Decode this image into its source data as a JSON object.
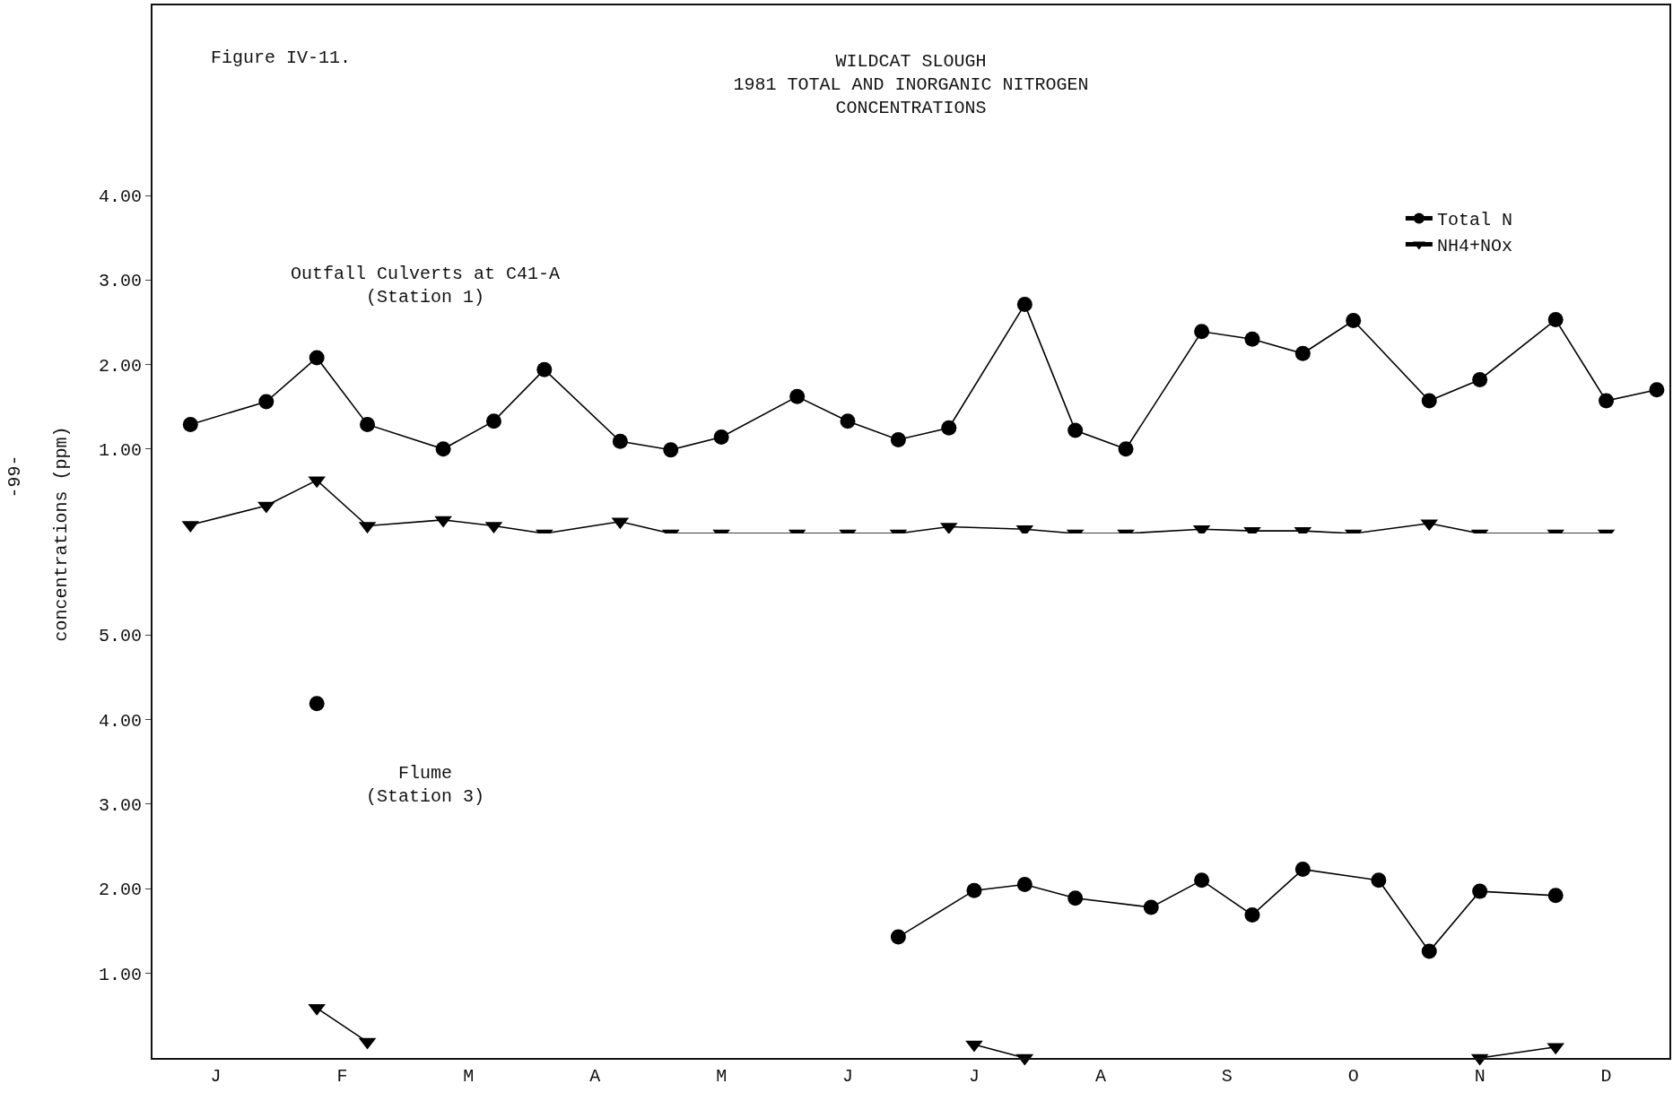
{
  "chart_data": [
    {
      "type": "line",
      "title": "WILDCAT SLOUGH\n1981 TOTAL AND INORGANIC NITROGEN\nCONCENTRATIONS",
      "ylabel": "concentrations (ppm)",
      "annotations": [
        "Figure IV-11.",
        "Outfall Culverts at C41-A\n(Station 1)",
        "-99-"
      ],
      "categories": [
        null,
        null,
        null,
        null,
        null,
        null,
        null,
        null,
        null,
        null,
        null,
        null,
        null,
        null,
        null,
        null,
        null,
        null,
        null,
        null,
        null,
        null,
        null,
        null,
        null,
        null,
        null,
        null,
        null,
        null,
        null,
        null,
        null,
        null,
        null,
        null,
        null,
        null,
        null,
        null,
        null,
        null,
        null,
        null,
        null,
        null,
        null,
        null,
        null,
        null,
        null,
        null,
        null,
        null,
        null,
        null,
        null,
        null,
        null,
        null
      ],
      "series": [
        {
          "name": "Total N",
          "color": "#000000",
          "marker": "circle",
          "values": [
            null,
            1.29,
            null,
            null,
            1.56,
            null,
            2.08,
            null,
            1.29,
            null,
            null,
            1.0,
            null,
            1.33,
            null,
            1.94,
            null,
            null,
            1.09,
            null,
            0.99,
            null,
            1.14,
            null,
            null,
            1.62,
            null,
            1.33,
            null,
            1.11,
            null,
            1.25,
            null,
            null,
            2.71,
            null,
            1.22,
            null,
            1.0,
            null,
            null,
            2.39,
            null,
            2.3,
            null,
            2.13,
            null,
            2.52,
            null,
            null,
            1.57,
            null,
            1.82,
            null,
            null,
            2.53,
            null,
            1.57,
            null,
            1.7
          ]
        },
        {
          "name": "NH4+NOx",
          "color": "#000000",
          "marker": "triangle",
          "values": [
            null,
            0.1,
            null,
            null,
            0.33,
            null,
            0.63,
            null,
            0.09,
            null,
            null,
            0.16,
            null,
            0.09,
            null,
            0,
            null,
            null,
            0.14,
            null,
            0,
            null,
            0,
            null,
            null,
            0,
            null,
            0,
            null,
            0,
            null,
            0.08,
            null,
            null,
            0.05,
            null,
            0,
            null,
            0,
            null,
            null,
            0.05,
            null,
            0.03,
            null,
            0.03,
            null,
            0,
            null,
            null,
            0.12,
            null,
            0,
            null,
            null,
            0,
            null,
            0,
            null,
            null
          ]
        }
      ],
      "ylim": [
        0,
        6.25
      ],
      "yticks": [
        {
          "value": 1,
          "label": "1.00"
        },
        {
          "value": 2,
          "label": "2.00"
        },
        {
          "value": 3,
          "label": "3.00"
        },
        {
          "value": 4,
          "label": "4.00"
        }
      ],
      "tick_labels": "y",
      "grid": false,
      "legend": "top right"
    },
    {
      "type": "line",
      "annotations": [
        "Flume\n(Station 3)"
      ],
      "categories": [
        null,
        null,
        "J",
        null,
        null,
        null,
        null,
        "F",
        null,
        null,
        null,
        null,
        "M",
        null,
        null,
        null,
        null,
        "A",
        null,
        null,
        null,
        null,
        "M",
        null,
        null,
        null,
        null,
        "J",
        null,
        null,
        null,
        null,
        "J",
        null,
        null,
        null,
        null,
        "A",
        null,
        null,
        null,
        null,
        "S",
        null,
        null,
        null,
        null,
        "O",
        null,
        null,
        null,
        null,
        "N",
        null,
        null,
        null,
        null,
        "D",
        null,
        null
      ],
      "series": [
        {
          "color": "#000000",
          "marker": "circle",
          "values": [
            null,
            null,
            null,
            null,
            null,
            null,
            4.19,
            null,
            null,
            null,
            null,
            null,
            null,
            null,
            null,
            null,
            null,
            null,
            null,
            null,
            null,
            null,
            null,
            null,
            null,
            null,
            null,
            null,
            null,
            null,
            null,
            null,
            null,
            null,
            null,
            null,
            null,
            null,
            null,
            null,
            null,
            null,
            null,
            null,
            null,
            null,
            null,
            null,
            null,
            null,
            null,
            null,
            null,
            null,
            null,
            null,
            null,
            null,
            null,
            null
          ]
        },
        {
          "color": "#000000",
          "marker": "circle",
          "values": [
            null,
            null,
            null,
            null,
            null,
            null,
            null,
            null,
            null,
            null,
            null,
            null,
            null,
            null,
            null,
            null,
            null,
            null,
            null,
            null,
            null,
            null,
            null,
            null,
            null,
            null,
            null,
            null,
            null,
            1.43,
            null,
            null,
            1.98,
            null,
            2.05,
            null,
            1.89,
            null,
            null,
            1.78,
            null,
            2.1,
            null,
            1.69,
            null,
            2.23,
            null,
            null,
            2.1,
            null,
            1.26,
            null,
            1.97,
            null,
            null,
            1.92,
            null,
            null,
            null,
            null
          ]
        },
        {
          "color": "#000000",
          "marker": "triangle",
          "values": [
            null,
            null,
            null,
            null,
            null,
            null,
            0.59,
            null,
            0.19,
            null,
            null,
            null,
            null,
            null,
            null,
            null,
            null,
            null,
            null,
            null,
            null,
            null,
            null,
            null,
            null,
            null,
            null,
            null,
            null,
            null,
            null,
            null,
            null,
            null,
            null,
            null,
            null,
            null,
            null,
            null,
            null,
            null,
            null,
            null,
            null,
            null,
            null,
            null,
            null,
            null,
            null,
            null,
            null,
            null,
            null,
            null,
            null,
            null,
            null,
            null
          ]
        },
        {
          "color": "#000000",
          "marker": "triangle",
          "values": [
            null,
            null,
            null,
            null,
            null,
            null,
            null,
            null,
            null,
            null,
            null,
            null,
            null,
            null,
            null,
            null,
            null,
            null,
            null,
            null,
            null,
            null,
            null,
            null,
            null,
            null,
            null,
            null,
            null,
            null,
            null,
            null,
            0.16,
            null,
            0,
            null,
            null,
            null,
            null,
            null,
            null,
            null,
            null,
            null,
            null,
            null,
            null,
            null,
            null,
            null,
            null,
            null,
            null,
            null,
            null,
            null,
            null,
            null,
            null,
            null
          ]
        },
        {
          "color": "#000000",
          "marker": "triangle",
          "values": [
            null,
            null,
            null,
            null,
            null,
            null,
            null,
            null,
            null,
            null,
            null,
            null,
            null,
            null,
            null,
            null,
            null,
            null,
            null,
            null,
            null,
            null,
            null,
            null,
            null,
            null,
            null,
            null,
            null,
            null,
            null,
            null,
            null,
            null,
            null,
            null,
            null,
            null,
            null,
            null,
            null,
            null,
            null,
            null,
            null,
            null,
            null,
            null,
            null,
            null,
            null,
            null,
            0,
            null,
            null,
            0.13,
            null,
            null,
            null,
            null
          ]
        }
      ],
      "ylim": [
        0,
        6.2
      ],
      "yticks": [
        {
          "value": 1,
          "label": "1.00"
        },
        {
          "value": 2,
          "label": "2.00"
        },
        {
          "value": 3,
          "label": "3.00"
        },
        {
          "value": 4,
          "label": "4.00"
        },
        {
          "value": 5,
          "label": "5.00"
        }
      ],
      "grid": false,
      "legend": false
    }
  ]
}
